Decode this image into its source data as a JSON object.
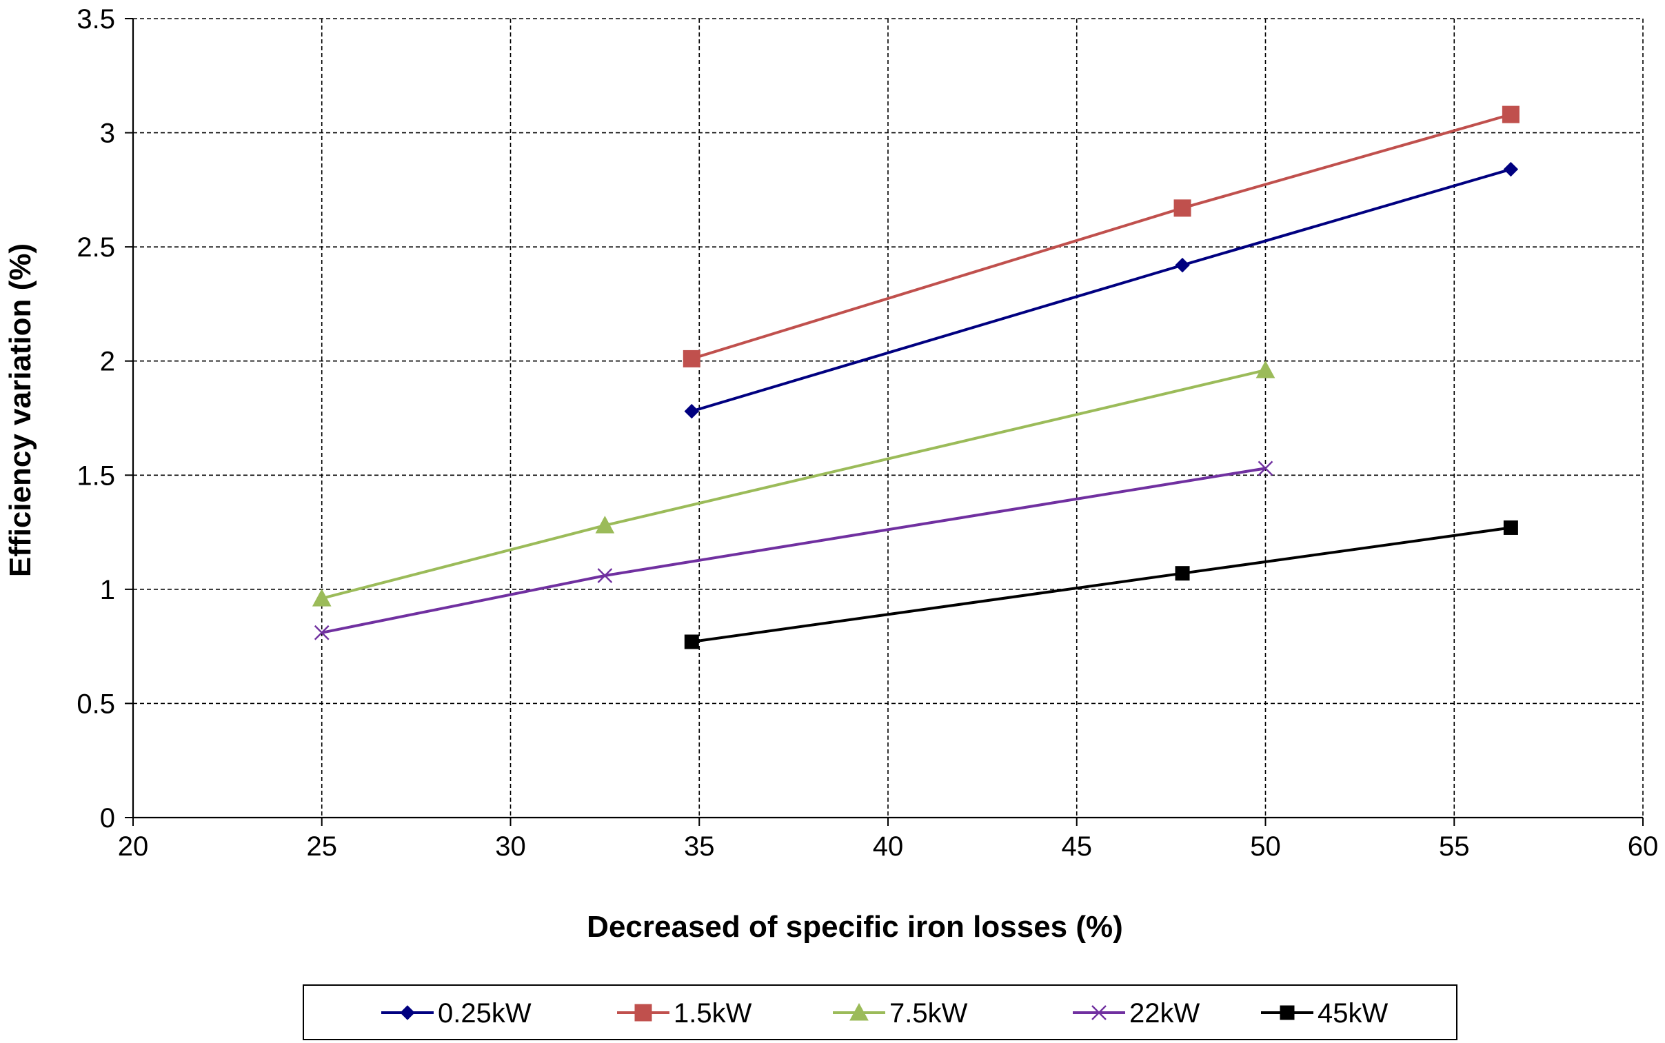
{
  "chart_data": {
    "type": "line",
    "title": "",
    "xlabel": "Decreased of specific iron losses (%)",
    "ylabel": "Efficiency variation (%)",
    "xlim": [
      20,
      60
    ],
    "ylim": [
      0,
      3.5
    ],
    "xticks": [
      20,
      25,
      30,
      35,
      40,
      45,
      50,
      55,
      60
    ],
    "yticks": [
      0,
      0.5,
      1,
      1.5,
      2,
      2.5,
      3,
      3.5
    ],
    "xtick_labels": [
      "20",
      "25",
      "30",
      "35",
      "40",
      "45",
      "50",
      "55",
      "60"
    ],
    "ytick_labels": [
      "0",
      "0.5",
      "1",
      "1.5",
      "2",
      "2.5",
      "3",
      "3.5"
    ],
    "grid": true,
    "legend_position": "bottom",
    "series": [
      {
        "name": "0.25kW",
        "color": "#000080",
        "marker": "diamond",
        "x": [
          34.8,
          47.8,
          56.5
        ],
        "y": [
          1.78,
          2.42,
          2.84
        ]
      },
      {
        "name": "1.5kW",
        "color": "#C0504D",
        "marker": "square",
        "x": [
          34.8,
          47.8,
          56.5
        ],
        "y": [
          2.01,
          2.67,
          3.08
        ]
      },
      {
        "name": "7.5kW",
        "color": "#9BBB59",
        "marker": "triangle",
        "x": [
          25,
          32.5,
          50
        ],
        "y": [
          0.96,
          1.28,
          1.96
        ]
      },
      {
        "name": "22kW",
        "color": "#7030A0",
        "marker": "x",
        "x": [
          25,
          32.5,
          50
        ],
        "y": [
          0.81,
          1.06,
          1.53
        ]
      },
      {
        "name": "45kW",
        "color": "#000000",
        "marker": "square-small",
        "x": [
          34.8,
          47.8,
          56.5
        ],
        "y": [
          0.77,
          1.07,
          1.27
        ]
      }
    ]
  }
}
